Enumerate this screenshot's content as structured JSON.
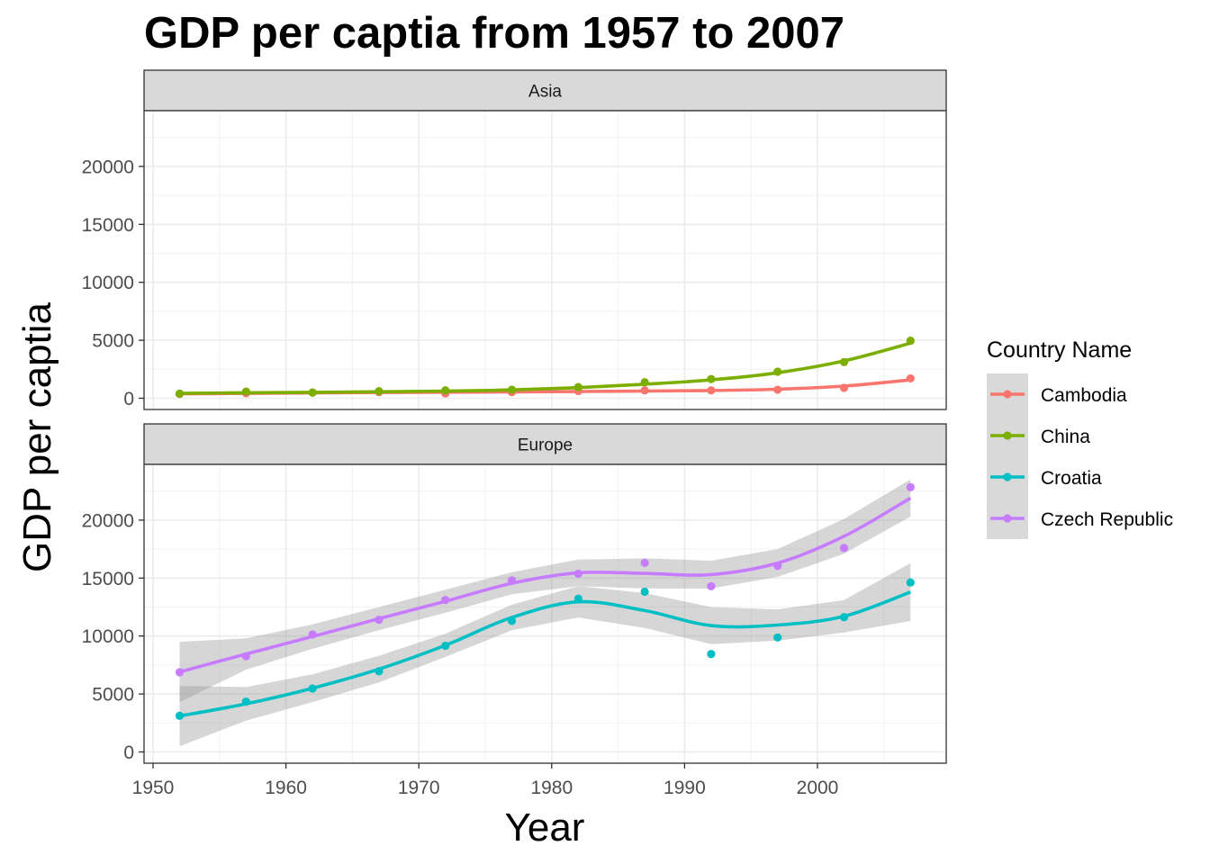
{
  "chart_data": {
    "type": "line",
    "title": "GDP per captia from 1957 to 2007",
    "xlabel": "Year",
    "ylabel": "GDP per captia",
    "xlim": [
      1950,
      2010
    ],
    "ylim": [
      0,
      25000
    ],
    "x_ticks": [
      "1950",
      "1960",
      "1970",
      "1980",
      "1990",
      "2000"
    ],
    "y_ticks": [
      "0",
      "5000",
      "10000",
      "15000",
      "20000"
    ],
    "grid": true,
    "legend": {
      "title": "Country Name",
      "position": "right"
    },
    "panels": [
      {
        "name": "Asia",
        "series": [
          {
            "name": "Cambodia",
            "color": "#F8766D",
            "x": [
              1952,
              1957,
              1962,
              1967,
              1972,
              1977,
              1982,
              1987,
              1992,
              1997,
              2002,
              2007
            ],
            "points": [
              368,
              434,
              497,
              523,
              422,
              525,
              625,
              684,
              682,
              734,
              896,
              1714
            ],
            "smooth": [
              380,
              420,
              460,
              495,
              520,
              545,
              580,
              620,
              670,
              780,
              1050,
              1580
            ]
          },
          {
            "name": "China",
            "color": "#7CAE00",
            "x": [
              1952,
              1957,
              1962,
              1967,
              1972,
              1977,
              1982,
              1987,
              1992,
              1997,
              2002,
              2007
            ],
            "points": [
              400,
              576,
              488,
              613,
              677,
              741,
              962,
              1379,
              1656,
              2289,
              3119,
              4959
            ],
            "smooth": [
              430,
              470,
              510,
              560,
              620,
              720,
              920,
              1210,
              1580,
              2200,
              3220,
              4750
            ]
          }
        ]
      },
      {
        "name": "Europe",
        "series": [
          {
            "name": "Croatia",
            "color": "#00BFC4",
            "x": [
              1952,
              1957,
              1962,
              1967,
              1972,
              1977,
              1982,
              1987,
              1992,
              1997,
              2002,
              2007
            ],
            "points": [
              3119,
              4338,
              5478,
              6960,
              9164,
              11305,
              13222,
              13823,
              8448,
              9876,
              11628,
              14619
            ],
            "smooth": [
              3100,
              4150,
              5500,
              7150,
              9200,
              11600,
              12950,
              12200,
              10900,
              10950,
              11700,
              13800
            ],
            "band_lower": [
              500,
              2700,
              4300,
              6000,
              8200,
              10500,
              11600,
              10700,
              9300,
              9600,
              10300,
              11300
            ],
            "band_upper": [
              5700,
              5600,
              6700,
              8300,
              10200,
              12700,
              14300,
              13700,
              12500,
              12300,
              13100,
              16300
            ]
          },
          {
            "name": "Czech Republic",
            "color": "#C77CFF",
            "x": [
              1952,
              1957,
              1962,
              1967,
              1972,
              1977,
              1982,
              1987,
              1992,
              1997,
              2002,
              2007
            ],
            "points": [
              6876,
              8256,
              10137,
              11399,
              13108,
              14800,
              15377,
              16310,
              14297,
              16049,
              17596,
              22833
            ],
            "smooth": [
              6900,
              8450,
              9950,
              11500,
              13000,
              14550,
              15450,
              15400,
              15300,
              16300,
              18600,
              21900
            ],
            "band_lower": [
              4300,
              7100,
              8900,
              10500,
              12000,
              13600,
              14300,
              14100,
              14100,
              15100,
              17100,
              20300
            ],
            "band_upper": [
              9500,
              9800,
              11000,
              12500,
              14000,
              15500,
              16600,
              16700,
              16500,
              17500,
              20100,
              23500
            ]
          }
        ]
      }
    ]
  }
}
